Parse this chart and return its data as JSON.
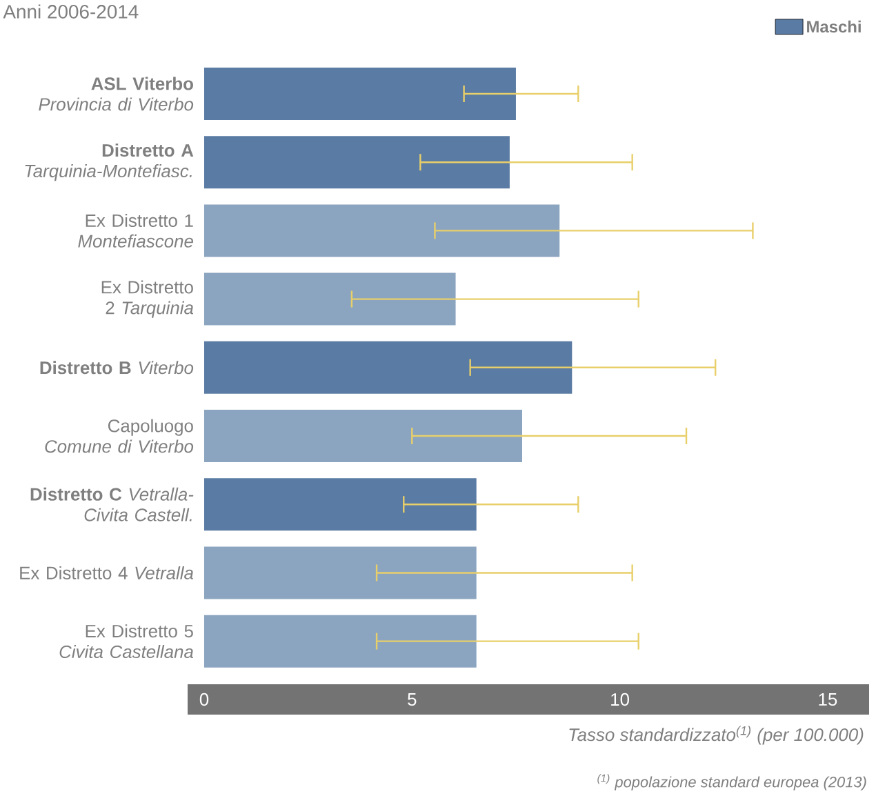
{
  "chart_data": {
    "type": "bar",
    "orientation": "horizontal",
    "title": "Anni 2006-2014",
    "categories": [
      "**ASL Viterbo** *Provincia di Viterbo*",
      "**Distretto A** *Tarquinia-Montefiasc.*",
      "Ex Distretto 1 *Montefiascone*",
      "Ex Distretto 2 *Tarquinia*",
      "**Distretto B** *Viterbo*",
      "Capoluogo *Comune di Viterbo*",
      "**Distretto C** *Vetralla-Civita Castell.*",
      "Ex Distretto 4 *Vetralla*",
      "Ex Distretto 5 *Civita Castellana*"
    ],
    "series": [
      {
        "name": "Maschi",
        "color": "#5a7ba3",
        "values": [
          7.5,
          7.35,
          8.55,
          6.05,
          8.85,
          7.65,
          6.55,
          6.55,
          6.55
        ],
        "colors": [
          "#5a7ba3",
          "#5a7ba3",
          "#8ba5c0",
          "#8ba5c0",
          "#5a7ba3",
          "#8ba5c0",
          "#5a7ba3",
          "#8ba5c0",
          "#8ba5c0"
        ],
        "errors": [
          [
            6.25,
            9.0
          ],
          [
            5.2,
            10.3
          ],
          [
            5.55,
            13.2
          ],
          [
            3.55,
            10.45
          ],
          [
            6.4,
            12.3
          ],
          [
            5.0,
            11.6
          ],
          [
            4.8,
            9.0
          ],
          [
            4.15,
            10.3
          ],
          [
            4.15,
            10.45
          ]
        ]
      }
    ],
    "xlim": [
      0,
      15
    ],
    "xticks": [
      0,
      5,
      10,
      15
    ],
    "xlabel": "Tasso standardizzato$^{(1)}$ (per 100.000)",
    "annotations": [
      "$^{(1)}$ popolazione standard europea (2013)"
    ],
    "legend": "top right"
  }
}
